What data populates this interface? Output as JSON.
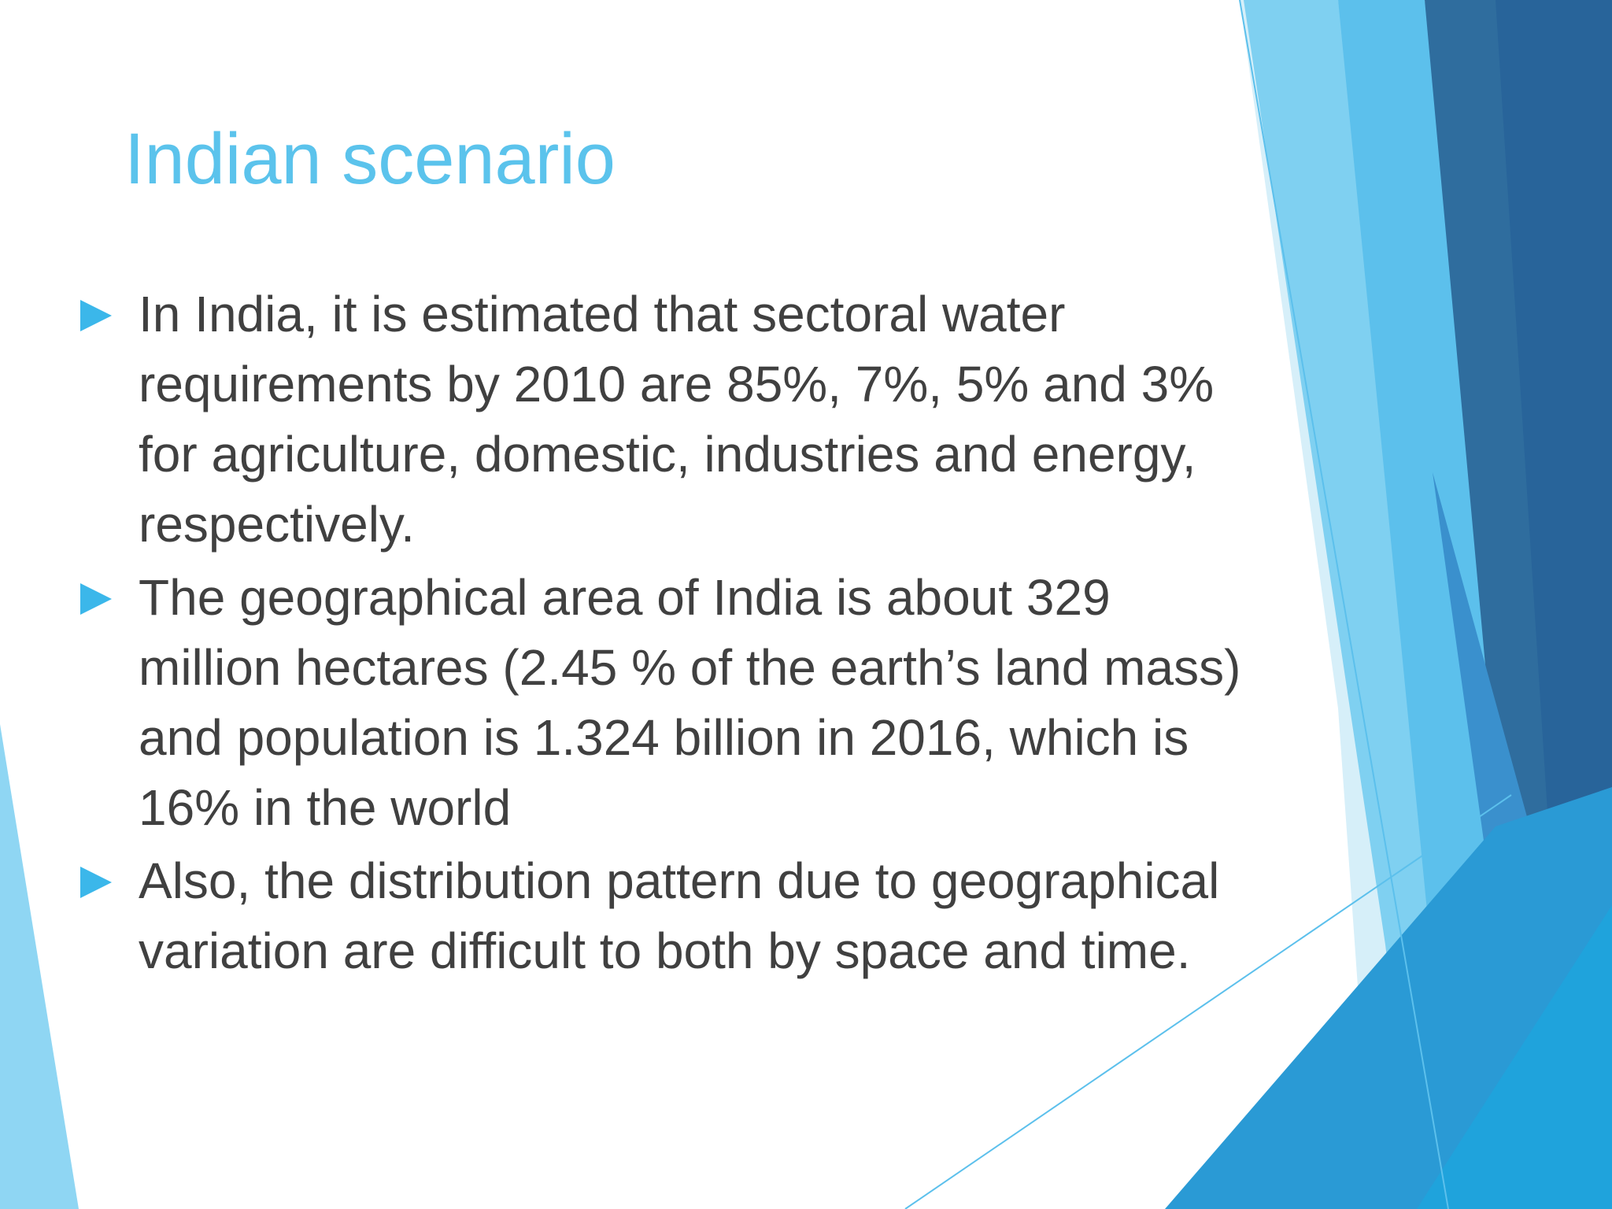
{
  "title": "Indian scenario",
  "bullets": [
    "In India, it is estimated that sectoral water requirements by 2010 are 85%, 7%, 5% and 3% for agriculture, domestic, industries and energy, respectively.",
    "The geographical area of India is about 329 million hectares (2.45 % of the earth’s land mass) and population is 1.324 billion in 2016, which is 16% in the world",
    "Also, the distribution pattern due to geographical variation are difficult to both by space and time."
  ]
}
